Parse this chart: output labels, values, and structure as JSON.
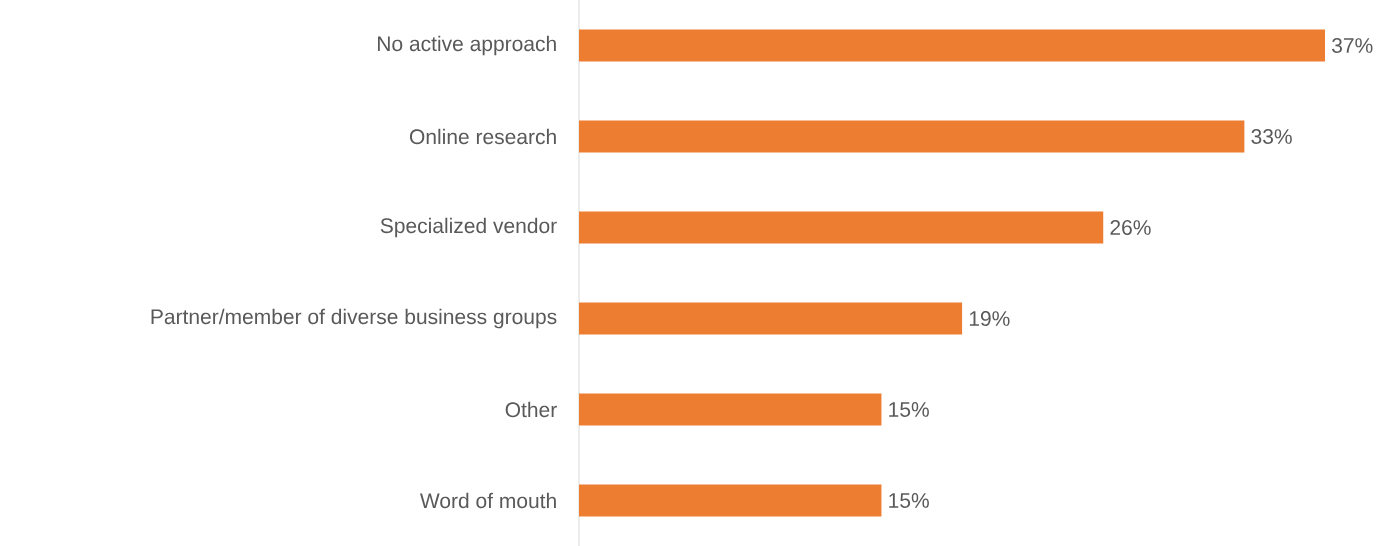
{
  "chart_data": {
    "type": "bar",
    "orientation": "horizontal",
    "categories": [
      "No active approach",
      "Online research",
      "Specialized vendor",
      "Partner/member of diverse business groups",
      "Other",
      "Word of mouth"
    ],
    "values": [
      37,
      33,
      26,
      19,
      15,
      15
    ],
    "value_labels": [
      "37%",
      "33%",
      "26%",
      "19%",
      "15%",
      "15%"
    ],
    "color": "#ed7d31"
  }
}
